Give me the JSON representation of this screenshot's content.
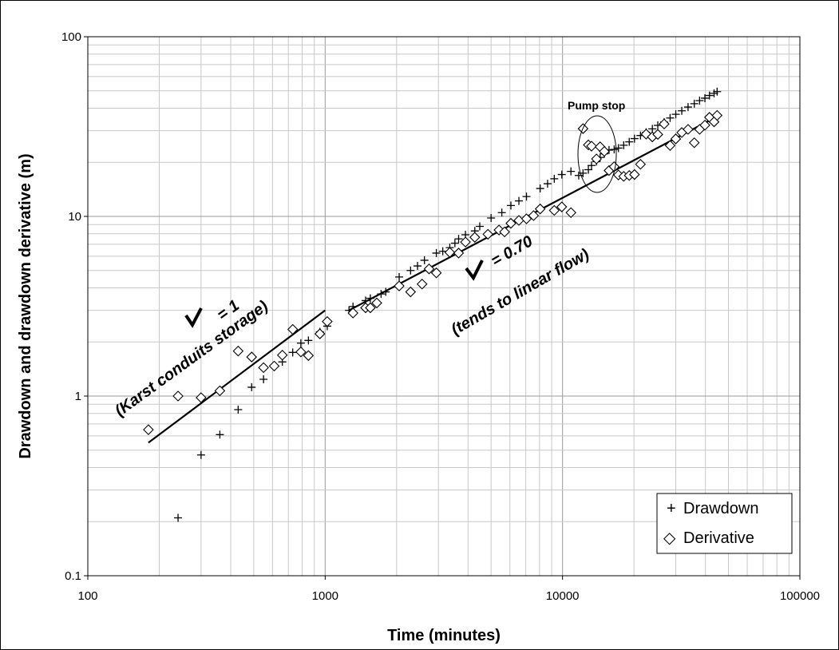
{
  "chart_data": {
    "type": "scatter",
    "xscale": "log",
    "yscale": "log",
    "xlim": [
      100,
      100000
    ],
    "ylim": [
      0.1,
      100
    ],
    "xlabel": "Time (minutes)",
    "ylabel": "Drawdown and drawdown derivative (m)",
    "x_ticks": [
      "100",
      "1000",
      "10000",
      "100000"
    ],
    "y_ticks": [
      "0.1",
      "1",
      "10",
      "100"
    ],
    "grid": true,
    "legend_position": "bottom-right",
    "series": [
      {
        "name": "Drawdown",
        "marker": "plus",
        "points": [
          [
            240,
            0.21
          ],
          [
            300,
            0.47
          ],
          [
            360,
            0.61
          ],
          [
            430,
            0.84
          ],
          [
            490,
            1.12
          ],
          [
            550,
            1.24
          ],
          [
            660,
            1.55
          ],
          [
            730,
            1.75
          ],
          [
            790,
            1.97
          ],
          [
            850,
            2.04
          ],
          [
            950,
            2.28
          ],
          [
            1020,
            2.45
          ],
          [
            1260,
            3.0
          ],
          [
            1310,
            3.15
          ],
          [
            1480,
            3.4
          ],
          [
            1550,
            3.5
          ],
          [
            1720,
            3.7
          ],
          [
            1800,
            3.8
          ],
          [
            2050,
            4.6
          ],
          [
            2290,
            5.0
          ],
          [
            2450,
            5.3
          ],
          [
            2620,
            5.7
          ],
          [
            2940,
            6.25
          ],
          [
            3130,
            6.4
          ],
          [
            3350,
            6.7
          ],
          [
            3520,
            7.1
          ],
          [
            3650,
            7.5
          ],
          [
            3900,
            7.9
          ],
          [
            4270,
            8.3
          ],
          [
            4480,
            8.8
          ],
          [
            5000,
            9.8
          ],
          [
            5550,
            10.5
          ],
          [
            6060,
            11.5
          ],
          [
            6550,
            12.2
          ],
          [
            7050,
            12.9
          ],
          [
            8050,
            14.3
          ],
          [
            8650,
            15.2
          ],
          [
            9230,
            16.2
          ],
          [
            9930,
            17.1
          ],
          [
            10850,
            17.8
          ],
          [
            11700,
            16.9
          ],
          [
            12200,
            17.4
          ],
          [
            12850,
            18.2
          ],
          [
            13250,
            19.2
          ],
          [
            13900,
            20.2
          ],
          [
            14400,
            21.3
          ],
          [
            15000,
            22.3
          ],
          [
            15700,
            23.4
          ],
          [
            16500,
            23.6
          ],
          [
            17200,
            24.0
          ],
          [
            18100,
            24.9
          ],
          [
            19100,
            26.0
          ],
          [
            20100,
            27.1
          ],
          [
            21300,
            28.2
          ],
          [
            22500,
            29.4
          ],
          [
            23900,
            30.7
          ],
          [
            25200,
            32.1
          ],
          [
            26800,
            33.5
          ],
          [
            28400,
            35.3
          ],
          [
            30000,
            37.0
          ],
          [
            31800,
            38.7
          ],
          [
            33800,
            40.6
          ],
          [
            35900,
            42.4
          ],
          [
            37800,
            44.1
          ],
          [
            39800,
            45.5
          ],
          [
            41600,
            47.1
          ],
          [
            43500,
            48.4
          ],
          [
            44800,
            49.5
          ]
        ]
      },
      {
        "name": "Derivative",
        "marker": "diamond",
        "points": [
          [
            180,
            0.65
          ],
          [
            240,
            1.0
          ],
          [
            300,
            0.98
          ],
          [
            360,
            1.07
          ],
          [
            430,
            1.78
          ],
          [
            490,
            1.65
          ],
          [
            550,
            1.44
          ],
          [
            610,
            1.47
          ],
          [
            660,
            1.69
          ],
          [
            730,
            2.35
          ],
          [
            790,
            1.76
          ],
          [
            850,
            1.68
          ],
          [
            950,
            2.22
          ],
          [
            1020,
            2.6
          ],
          [
            1310,
            2.9
          ],
          [
            1480,
            3.1
          ],
          [
            1550,
            3.1
          ],
          [
            1650,
            3.3
          ],
          [
            2050,
            4.1
          ],
          [
            2290,
            3.8
          ],
          [
            2560,
            4.2
          ],
          [
            2740,
            5.1
          ],
          [
            2940,
            4.85
          ],
          [
            3350,
            6.3
          ],
          [
            3650,
            6.25
          ],
          [
            3900,
            7.2
          ],
          [
            4270,
            7.65
          ],
          [
            4850,
            7.95
          ],
          [
            5400,
            8.4
          ],
          [
            5700,
            8.2
          ],
          [
            6060,
            9.15
          ],
          [
            6550,
            9.5
          ],
          [
            7050,
            9.7
          ],
          [
            7550,
            10.1
          ],
          [
            8050,
            11.0
          ],
          [
            9230,
            10.8
          ],
          [
            9930,
            11.3
          ],
          [
            10850,
            10.5
          ],
          [
            12200,
            30.8
          ],
          [
            12850,
            25.0
          ],
          [
            13250,
            24.6
          ],
          [
            13900,
            20.9
          ],
          [
            14400,
            24.4
          ],
          [
            15000,
            23.0
          ],
          [
            15700,
            18.0
          ],
          [
            16500,
            18.9
          ],
          [
            17200,
            17.0
          ],
          [
            18100,
            16.7
          ],
          [
            19100,
            16.9
          ],
          [
            20100,
            17.1
          ],
          [
            21300,
            19.5
          ],
          [
            22500,
            28.7
          ],
          [
            23900,
            27.7
          ],
          [
            25200,
            28.6
          ],
          [
            26800,
            32.7
          ],
          [
            28400,
            24.8
          ],
          [
            30000,
            27.0
          ],
          [
            31800,
            29.3
          ],
          [
            33800,
            30.5
          ],
          [
            35900,
            25.7
          ],
          [
            37800,
            30.5
          ],
          [
            39800,
            32.2
          ],
          [
            41600,
            35.6
          ],
          [
            43500,
            33.6
          ],
          [
            44800,
            36.5
          ]
        ]
      }
    ],
    "fit_lines": [
      {
        "from": [
          180,
          0.55
        ],
        "to": [
          1000,
          3.0
        ]
      },
      {
        "from": [
          1260,
          3.0
        ],
        "to": [
          44800,
          36.0
        ]
      }
    ],
    "annotations": {
      "slope1_main": "= 1",
      "slope1_sub": "(Karst conduits storage)",
      "slope2_main": "= 0.70",
      "slope2_sub": "(tends to linear flow)",
      "pump_stop": "Pump stop"
    }
  },
  "legend": {
    "items": [
      {
        "symbol": "+",
        "label": "Drawdown"
      },
      {
        "symbol": "◇",
        "label": "Derivative"
      }
    ]
  }
}
